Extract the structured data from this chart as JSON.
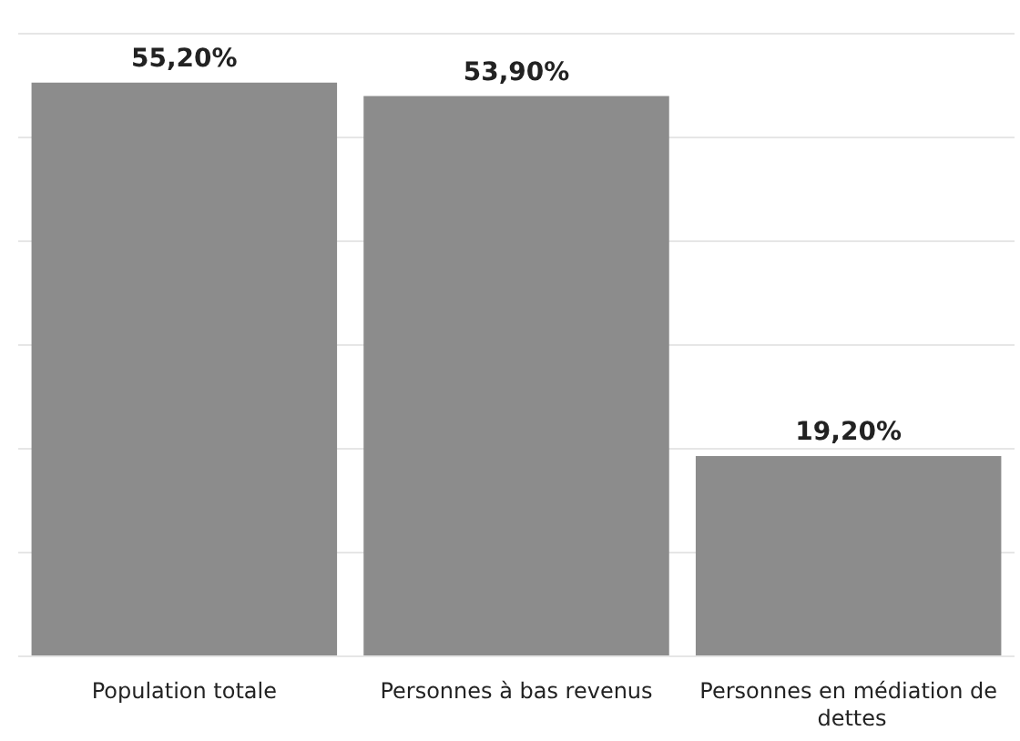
{
  "chart_data": {
    "type": "bar",
    "categories": [
      "Population totale",
      "Personnes à bas revenus",
      "Personnes en médiation de dettes"
    ],
    "values": [
      55.2,
      53.9,
      19.2
    ],
    "color": "#8c8c8c",
    "value_labels": [
      "55,20%",
      "53,90%",
      "19,20%"
    ],
    "ylim": [
      0,
      60
    ],
    "yticks": [
      {
        "value": 0,
        "label": null
      },
      {
        "value": 10,
        "label": null
      },
      {
        "value": 20,
        "label": null
      },
      {
        "value": 30,
        "label": null
      },
      {
        "value": 40,
        "label": null
      },
      {
        "value": 50,
        "label": null
      },
      {
        "value": 60,
        "label": null
      }
    ],
    "grid": "y",
    "tick_labels": "x"
  }
}
